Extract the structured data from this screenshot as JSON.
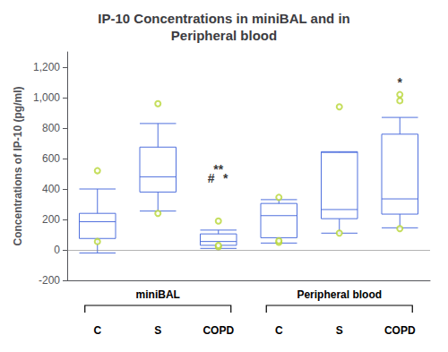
{
  "chart_data": {
    "type": "boxplot",
    "title": "IP-10 Concentrations in miniBAL and in\nPeripheral blood",
    "y_label": "Concentrations of IP-10 (pg/ml)",
    "group_labels": [
      "miniBAL",
      "Peripheral blood"
    ],
    "categories": [
      "C",
      "S",
      "COPD",
      "C",
      "S",
      "COPD"
    ],
    "boxes": [
      {
        "q1": 75,
        "median": 185,
        "q3": 240,
        "whislo": -20,
        "whishi": 400,
        "fliers": [
          55,
          520
        ]
      },
      {
        "q1": 380,
        "median": 480,
        "q3": 675,
        "whislo": 255,
        "whishi": 830,
        "fliers": [
          240,
          960
        ]
      },
      {
        "q1": 30,
        "median": 55,
        "q3": 105,
        "whislo": 10,
        "whishi": 130,
        "fliers": [
          20,
          30,
          190
        ]
      },
      {
        "q1": 80,
        "median": 225,
        "q3": 305,
        "whislo": 45,
        "whishi": 330,
        "fliers": [
          50,
          60,
          345
        ]
      },
      {
        "q1": 205,
        "median": 265,
        "q3": 645,
        "whislo": 110,
        "whishi": 640,
        "fliers": [
          110,
          940
        ]
      },
      {
        "q1": 235,
        "median": 335,
        "q3": 760,
        "whislo": 145,
        "whishi": 870,
        "fliers": [
          140,
          980,
          1020
        ]
      }
    ],
    "reference_line": 0,
    "annotations": [
      {
        "text": "**",
        "box": 2,
        "y": 490
      },
      {
        "text": "#",
        "box": 2,
        "y": 430
      },
      {
        "text": "*",
        "box": 2,
        "y": 430
      },
      {
        "text": "*",
        "box": 5,
        "y": 1060
      }
    ],
    "ylim": [
      -200,
      1300
    ],
    "yticks": [
      -200,
      0,
      200,
      400,
      600,
      800,
      1000,
      1200
    ],
    "grid": false
  }
}
